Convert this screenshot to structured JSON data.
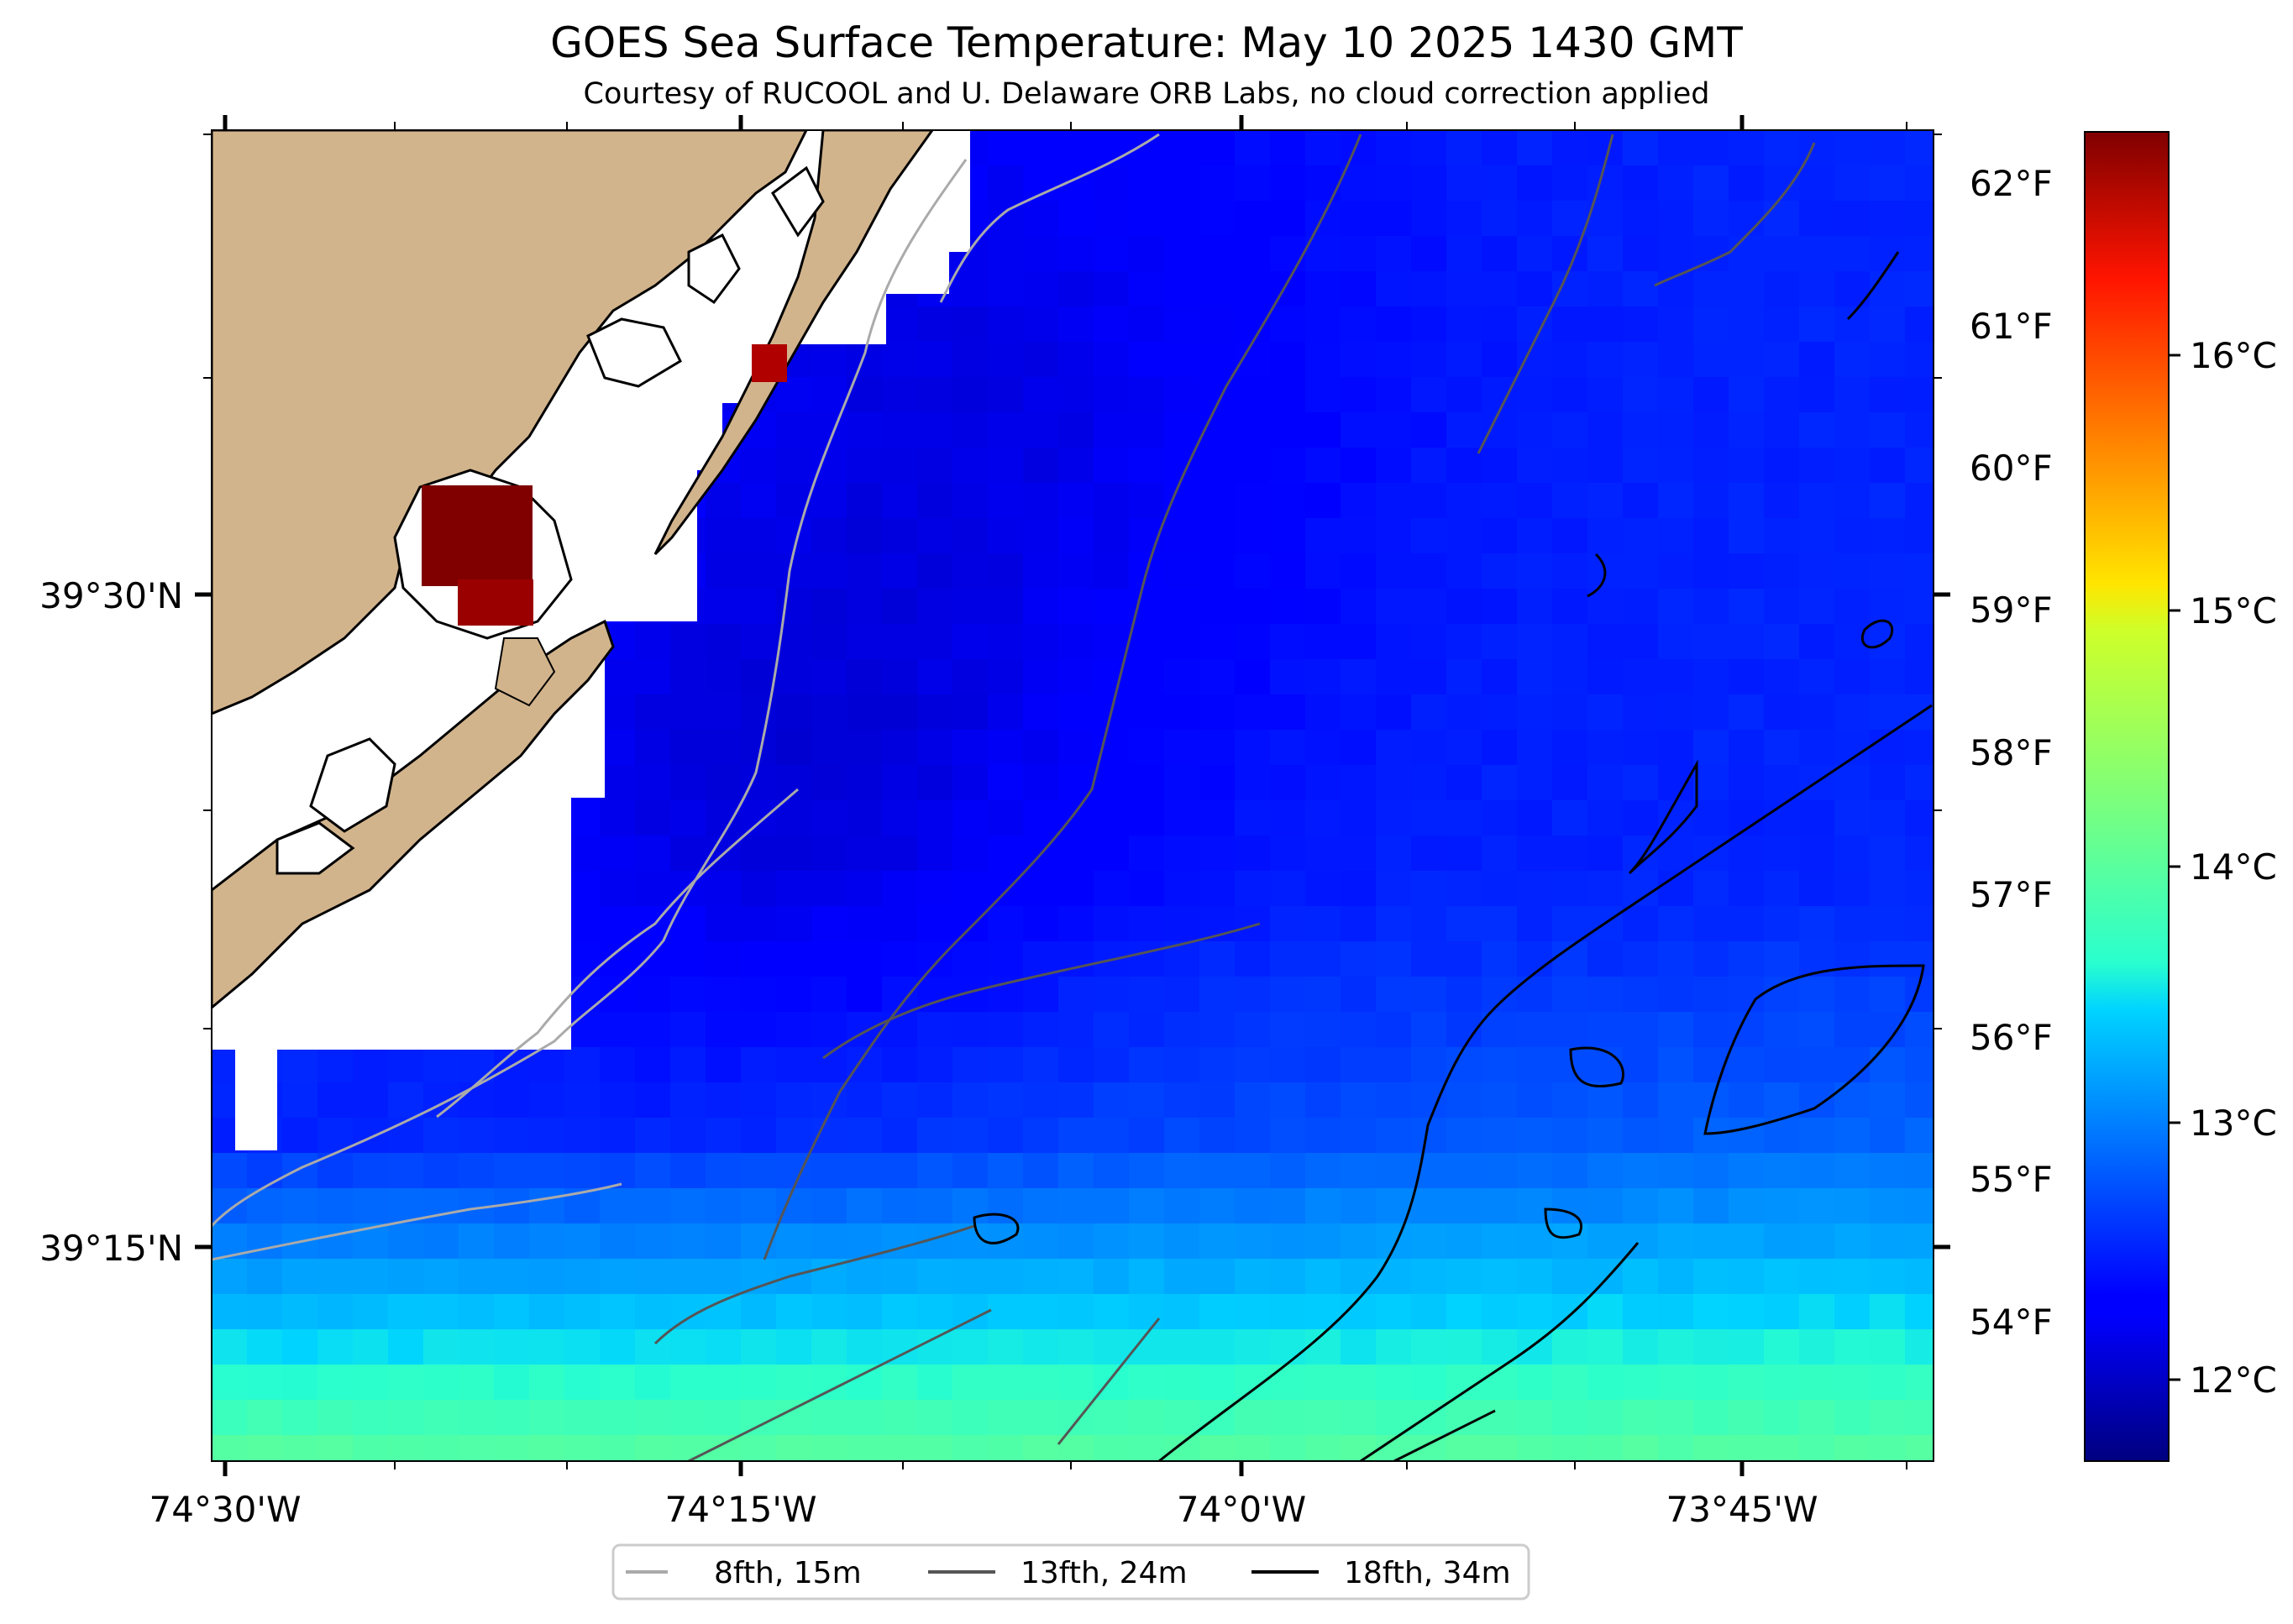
{
  "title": "GOES Sea Surface Temperature: May 10 2025 1430 GMT",
  "subtitle": "Courtesy of RUCOOL and U. Delaware ORB Labs, no cloud correction applied",
  "colors": {
    "land": "#D2B48C",
    "no_data": "#FFFFFF",
    "contour_8fth": "#AAAAAA",
    "contour_13fth": "#555555",
    "contour_18fth": "#000000",
    "coastline": "#000000"
  },
  "map": {
    "lon_ticks": [
      "74°30'W",
      "74°15'W",
      "74°0'W",
      "73°45'W"
    ],
    "lat_ticks": [
      "39°30'N",
      "39°15'N"
    ]
  },
  "colorbar": {
    "colormap": "jet",
    "fahrenheit_ticks": [
      "62°F",
      "61°F",
      "60°F",
      "59°F",
      "58°F",
      "57°F",
      "56°F",
      "55°F",
      "54°F"
    ],
    "celsius_ticks": [
      "16°C",
      "15°C",
      "14°C",
      "13°C",
      "12°C"
    ]
  },
  "legend": {
    "placement": "bottom-center",
    "items": [
      {
        "label": "8fth, 15m",
        "color": "#AAAAAA"
      },
      {
        "label": "13fth, 24m",
        "color": "#555555"
      },
      {
        "label": "18fth, 34m",
        "color": "#000000"
      }
    ]
  }
}
